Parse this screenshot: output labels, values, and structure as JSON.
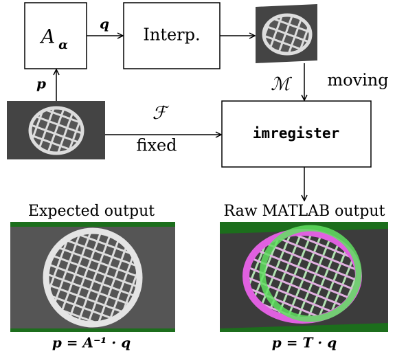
{
  "nodes": [
    {
      "label": "A",
      "subscript": "α"
    },
    {
      "label": "Interp."
    },
    {
      "label": "imregister"
    }
  ],
  "edges": [
    {
      "label": "q"
    },
    {
      "label": "p"
    },
    {
      "label": "ℳ",
      "sublabel": "moving"
    },
    {
      "label": "ℱ",
      "sublabel": "fixed"
    }
  ],
  "panels": [
    {
      "title": "Expected output",
      "formula": "p = A⁻¹ · q"
    },
    {
      "title": "Raw MATLAB output",
      "formula": "p = T · q"
    }
  ]
}
